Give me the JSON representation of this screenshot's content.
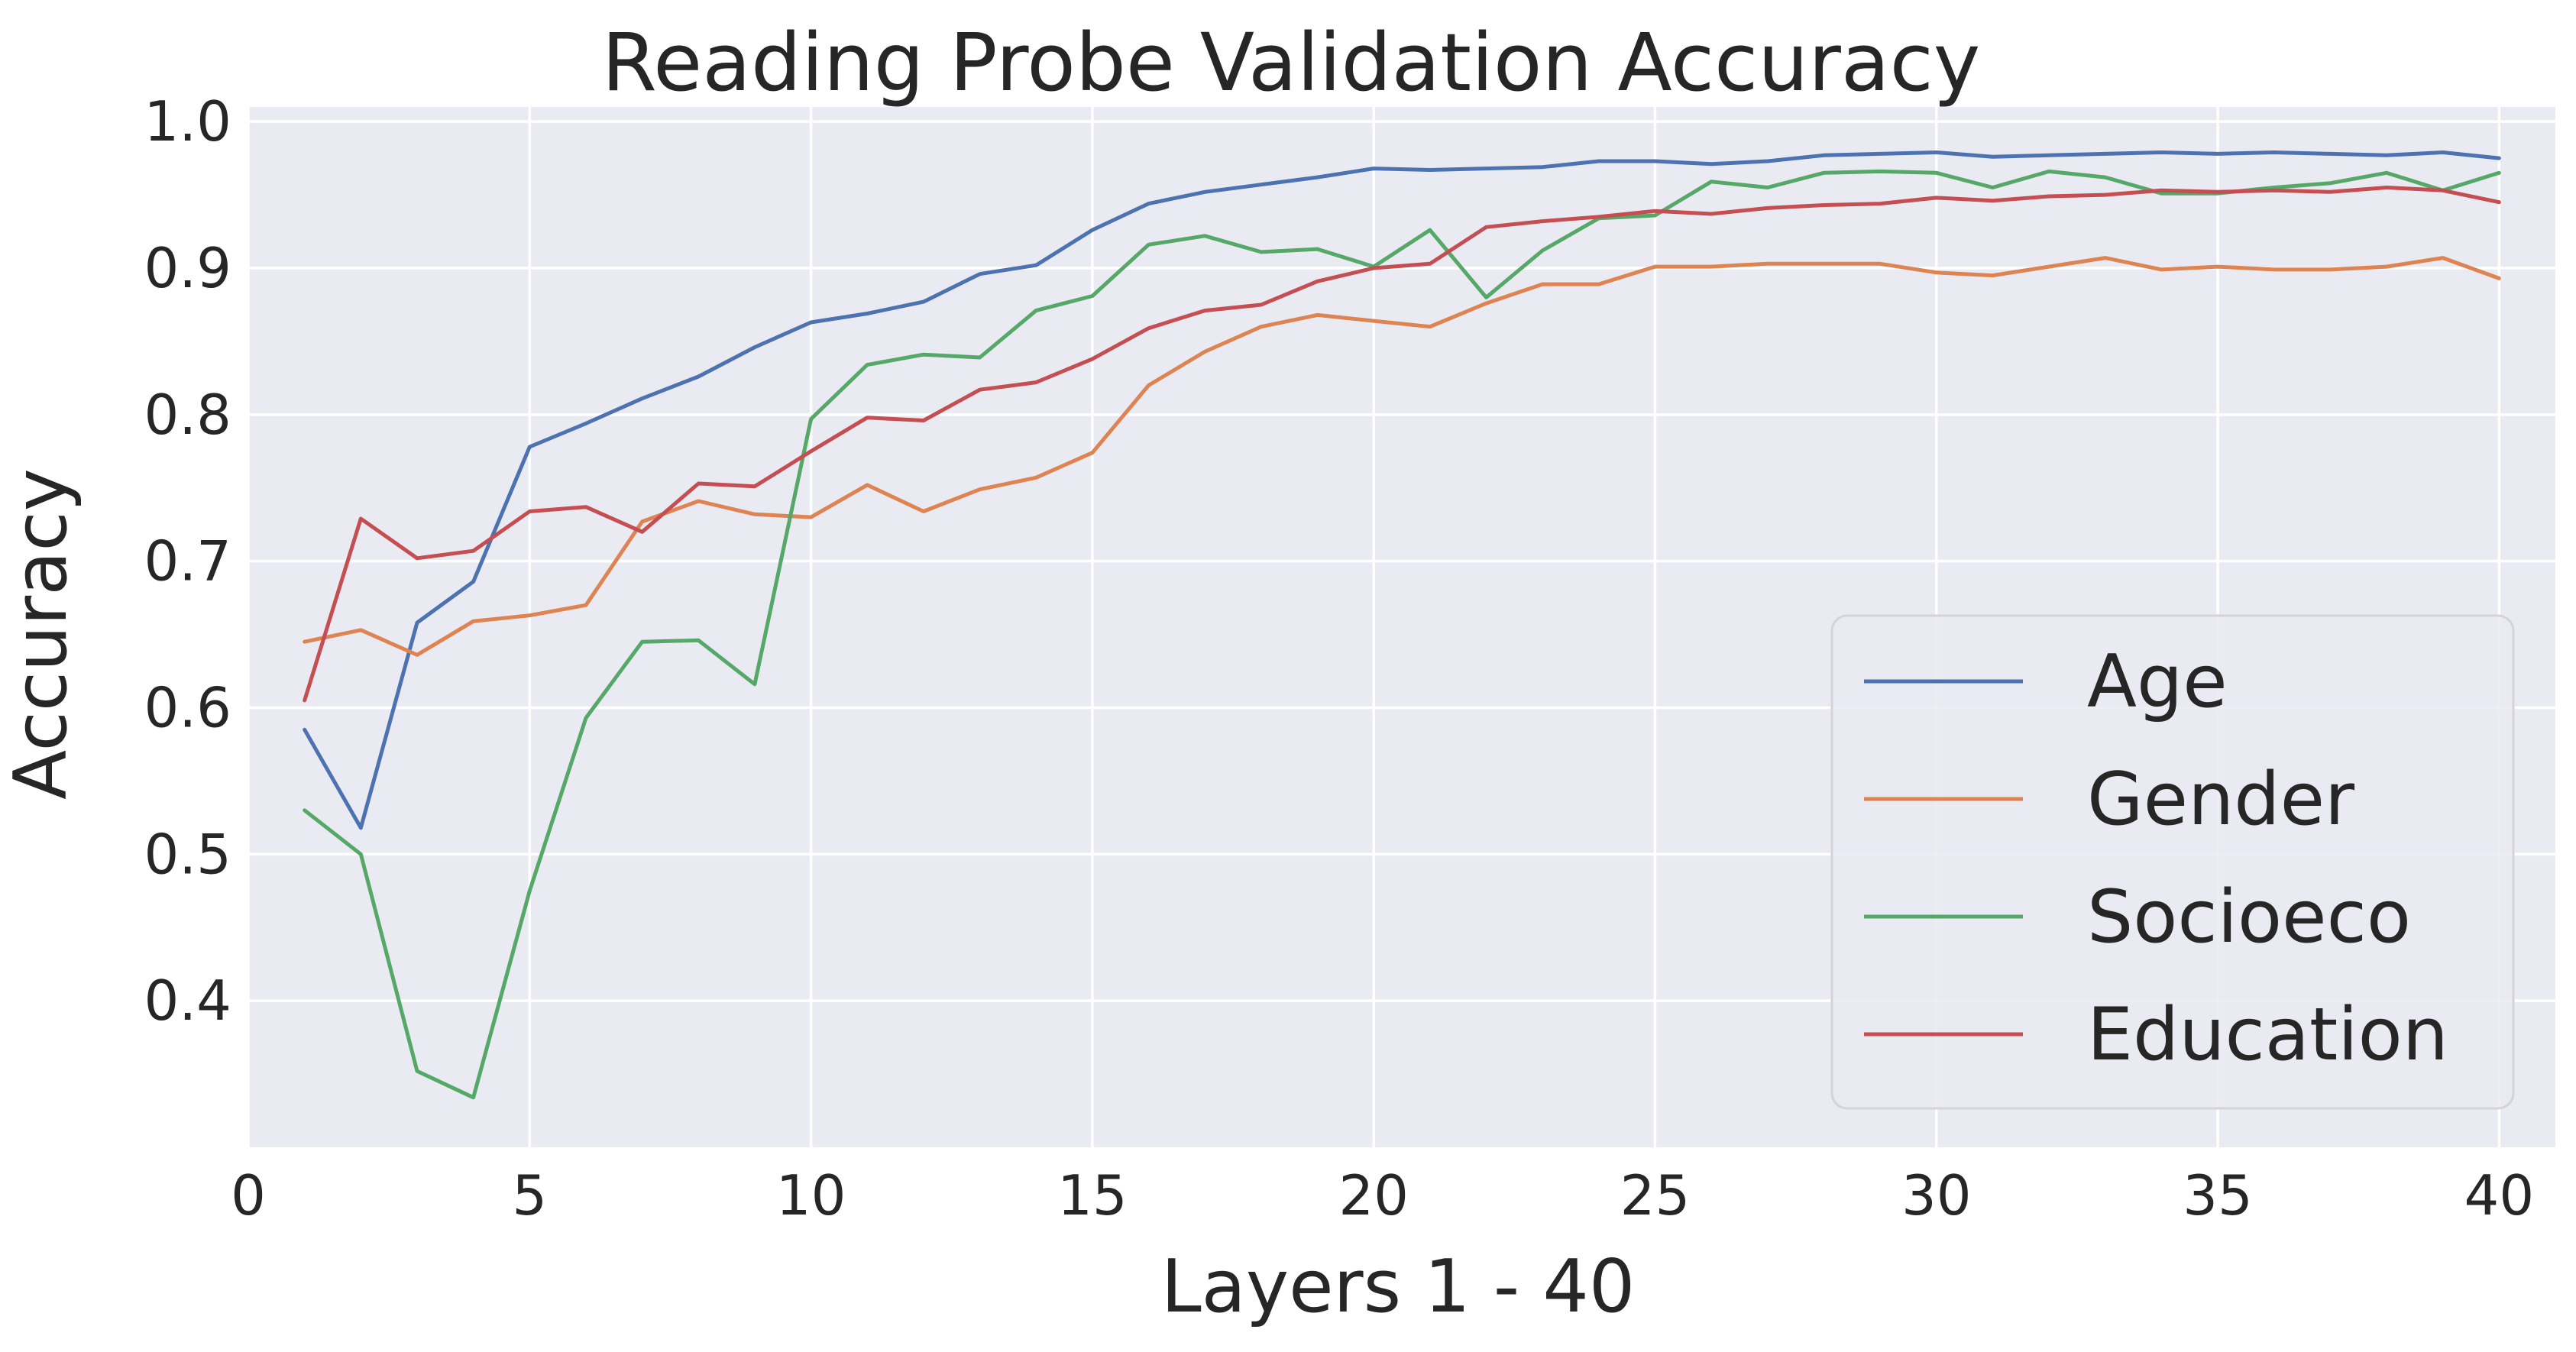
{
  "chart_data": {
    "type": "line",
    "title": "Reading Probe Validation Accuracy",
    "xlabel": "Layers 1 - 40",
    "ylabel": "Accuracy",
    "xlim": [
      0,
      41
    ],
    "ylim": [
      0.3,
      1.01
    ],
    "xticks": [
      0,
      5,
      10,
      15,
      20,
      25,
      30,
      35,
      40
    ],
    "yticks": [
      0.4,
      0.5,
      0.6,
      0.7,
      0.8,
      0.9,
      1.0
    ],
    "xtick_labels": [
      "0",
      "5",
      "10",
      "15",
      "20",
      "25",
      "30",
      "35",
      "40"
    ],
    "ytick_labels": [
      "0.4",
      "0.5",
      "0.6",
      "0.7",
      "0.8",
      "0.9",
      "1.0"
    ],
    "grid": true,
    "background": "#eaeaf2",
    "legend_position": "lower-right",
    "x": [
      1,
      2,
      3,
      4,
      5,
      6,
      7,
      8,
      9,
      10,
      11,
      12,
      13,
      14,
      15,
      16,
      17,
      18,
      19,
      20,
      21,
      22,
      23,
      24,
      25,
      26,
      27,
      28,
      29,
      30,
      31,
      32,
      33,
      34,
      35,
      36,
      37,
      38,
      39,
      40
    ],
    "series": [
      {
        "name": "Age",
        "color": "#4c72b0",
        "values": [
          0.585,
          0.518,
          0.658,
          0.686,
          0.778,
          0.794,
          0.811,
          0.826,
          0.846,
          0.863,
          0.869,
          0.877,
          0.896,
          0.902,
          0.926,
          0.944,
          0.952,
          0.957,
          0.962,
          0.968,
          0.967,
          0.968,
          0.969,
          0.973,
          0.973,
          0.971,
          0.973,
          0.977,
          0.978,
          0.979,
          0.976,
          0.977,
          0.978,
          0.979,
          0.978,
          0.979,
          0.978,
          0.977,
          0.979,
          0.975
        ]
      },
      {
        "name": "Gender",
        "color": "#dd8452",
        "values": [
          0.645,
          0.653,
          0.636,
          0.659,
          0.663,
          0.67,
          0.727,
          0.741,
          0.732,
          0.73,
          0.752,
          0.734,
          0.749,
          0.757,
          0.774,
          0.82,
          0.843,
          0.86,
          0.868,
          0.864,
          0.86,
          0.876,
          0.889,
          0.889,
          0.901,
          0.901,
          0.903,
          0.903,
          0.903,
          0.897,
          0.895,
          0.901,
          0.907,
          0.899,
          0.901,
          0.899,
          0.899,
          0.901,
          0.907,
          0.893
        ]
      },
      {
        "name": "Socioeco",
        "color": "#55a868",
        "values": [
          0.53,
          0.5,
          0.352,
          0.334,
          0.475,
          0.593,
          0.645,
          0.646,
          0.616,
          0.797,
          0.834,
          0.841,
          0.839,
          0.871,
          0.881,
          0.916,
          0.922,
          0.911,
          0.913,
          0.901,
          0.926,
          0.88,
          0.912,
          0.934,
          0.936,
          0.959,
          0.955,
          0.965,
          0.966,
          0.965,
          0.955,
          0.966,
          0.962,
          0.951,
          0.951,
          0.955,
          0.958,
          0.965,
          0.953,
          0.965
        ]
      },
      {
        "name": "Education",
        "color": "#c44e52",
        "values": [
          0.605,
          0.729,
          0.702,
          0.707,
          0.734,
          0.737,
          0.72,
          0.753,
          0.751,
          0.775,
          0.798,
          0.796,
          0.817,
          0.822,
          0.838,
          0.859,
          0.871,
          0.875,
          0.891,
          0.9,
          0.903,
          0.928,
          0.932,
          0.935,
          0.939,
          0.937,
          0.941,
          0.943,
          0.944,
          0.948,
          0.946,
          0.949,
          0.95,
          0.953,
          0.952,
          0.953,
          0.952,
          0.955,
          0.953,
          0.945
        ]
      }
    ]
  }
}
